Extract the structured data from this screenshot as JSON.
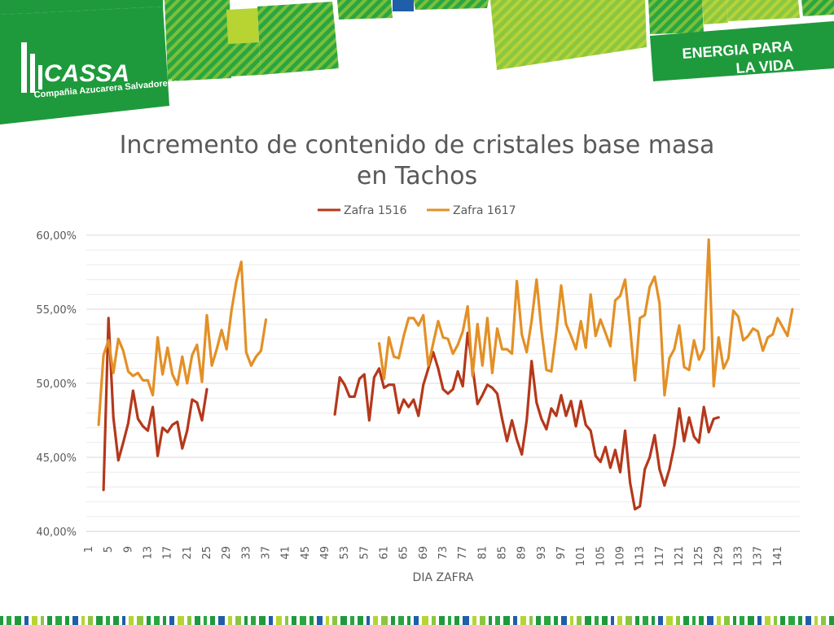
{
  "branding": {
    "logo_name": "CASSA",
    "logo_subtitle": "Compañia Azucarera Salvadoreña",
    "slogan_line1": "ENERGIA PARA",
    "slogan_line2": "LA VIDA"
  },
  "colors": {
    "brand_green": "#1e9a3c",
    "lime": "#8cc63f",
    "yellow_green": "#b7d433",
    "series_1516": "#b5381b",
    "series_1617": "#e39026"
  },
  "chart_data": {
    "type": "line",
    "title_lines": [
      "Incremento de contenido de cristales base masa",
      "en Tachos"
    ],
    "xlabel": "DIA ZAFRA",
    "ylabel": "",
    "x_range": [
      1,
      145
    ],
    "x_tick_labels": [
      "1",
      "5",
      "9",
      "13",
      "17",
      "21",
      "25",
      "29",
      "33",
      "37",
      "41",
      "45",
      "49",
      "53",
      "57",
      "61",
      "65",
      "69",
      "73",
      "77",
      "81",
      "85",
      "89",
      "93",
      "97",
      "101",
      "105",
      "109",
      "113",
      "117",
      "121",
      "125",
      "129",
      "133",
      "137",
      "141"
    ],
    "ylim": [
      40,
      60
    ],
    "y_tick_labels": [
      "40,00%",
      "45,00%",
      "50,00%",
      "55,00%",
      "60,00%"
    ],
    "y_ticks": [
      40,
      45,
      50,
      55,
      60
    ],
    "grid": true,
    "legend_position": "top-center",
    "series": [
      {
        "name": "Zafra 1516",
        "color": "#b5381b",
        "points": [
          [
            4,
            42.8
          ],
          [
            5,
            54.4
          ],
          [
            6,
            47.7
          ],
          [
            7,
            44.8
          ],
          [
            8,
            46.0
          ],
          [
            9,
            47.3
          ],
          [
            10,
            49.5
          ],
          [
            11,
            47.6
          ],
          [
            12,
            47.1
          ],
          [
            13,
            46.8
          ],
          [
            14,
            48.4
          ],
          [
            15,
            45.1
          ],
          [
            16,
            47.0
          ],
          [
            17,
            46.7
          ],
          [
            18,
            47.2
          ],
          [
            19,
            47.4
          ],
          [
            20,
            45.6
          ],
          [
            21,
            46.8
          ],
          [
            22,
            48.9
          ],
          [
            23,
            48.7
          ],
          [
            24,
            47.5
          ],
          [
            25,
            49.6
          ],
          [
            51,
            47.9
          ],
          [
            52,
            50.4
          ],
          [
            53,
            49.9
          ],
          [
            54,
            49.1
          ],
          [
            55,
            49.1
          ],
          [
            56,
            50.3
          ],
          [
            57,
            50.6
          ],
          [
            58,
            47.5
          ],
          [
            59,
            50.4
          ],
          [
            60,
            51.0
          ],
          [
            61,
            49.7
          ],
          [
            62,
            49.9
          ],
          [
            63,
            49.9
          ],
          [
            64,
            48.0
          ],
          [
            65,
            48.9
          ],
          [
            66,
            48.4
          ],
          [
            67,
            48.9
          ],
          [
            68,
            47.8
          ],
          [
            69,
            49.9
          ],
          [
            70,
            51.0
          ],
          [
            71,
            52.1
          ],
          [
            72,
            51.0
          ],
          [
            73,
            49.6
          ],
          [
            74,
            49.3
          ],
          [
            75,
            49.6
          ],
          [
            76,
            50.8
          ],
          [
            77,
            49.8
          ],
          [
            78,
            53.4
          ],
          [
            79,
            51.1
          ],
          [
            80,
            48.6
          ],
          [
            81,
            49.2
          ],
          [
            82,
            49.9
          ],
          [
            83,
            49.7
          ],
          [
            84,
            49.3
          ],
          [
            85,
            47.6
          ],
          [
            86,
            46.1
          ],
          [
            87,
            47.5
          ],
          [
            88,
            46.2
          ],
          [
            89,
            45.2
          ],
          [
            90,
            47.5
          ],
          [
            91,
            51.5
          ],
          [
            92,
            48.7
          ],
          [
            93,
            47.6
          ],
          [
            94,
            46.9
          ],
          [
            95,
            48.3
          ],
          [
            96,
            47.8
          ],
          [
            97,
            49.2
          ],
          [
            98,
            47.8
          ],
          [
            99,
            48.8
          ],
          [
            100,
            47.1
          ],
          [
            101,
            48.8
          ],
          [
            102,
            47.2
          ],
          [
            103,
            46.8
          ],
          [
            104,
            45.1
          ],
          [
            105,
            44.7
          ],
          [
            106,
            45.7
          ],
          [
            107,
            44.3
          ],
          [
            108,
            45.5
          ],
          [
            109,
            44.0
          ],
          [
            110,
            46.8
          ],
          [
            111,
            43.3
          ],
          [
            112,
            41.5
          ],
          [
            113,
            41.7
          ],
          [
            114,
            44.2
          ],
          [
            115,
            45.0
          ],
          [
            116,
            46.5
          ],
          [
            117,
            44.2
          ],
          [
            118,
            43.1
          ],
          [
            119,
            44.2
          ],
          [
            120,
            45.8
          ],
          [
            121,
            48.3
          ],
          [
            122,
            46.1
          ],
          [
            123,
            47.7
          ],
          [
            124,
            46.4
          ],
          [
            125,
            46.0
          ],
          [
            126,
            48.4
          ],
          [
            127,
            46.7
          ],
          [
            128,
            47.6
          ],
          [
            129,
            47.7
          ]
        ]
      },
      {
        "name": "Zafra 1617",
        "color": "#e39026",
        "points": [
          [
            3,
            47.2
          ],
          [
            4,
            51.9
          ],
          [
            5,
            52.9
          ],
          [
            6,
            50.7
          ],
          [
            7,
            53.0
          ],
          [
            8,
            52.2
          ],
          [
            9,
            50.8
          ],
          [
            10,
            50.5
          ],
          [
            11,
            50.7
          ],
          [
            12,
            50.2
          ],
          [
            13,
            50.2
          ],
          [
            14,
            49.2
          ],
          [
            15,
            53.1
          ],
          [
            16,
            50.6
          ],
          [
            17,
            52.4
          ],
          [
            18,
            50.6
          ],
          [
            19,
            49.9
          ],
          [
            20,
            51.8
          ],
          [
            21,
            50.0
          ],
          [
            22,
            51.9
          ],
          [
            23,
            52.6
          ],
          [
            24,
            50.1
          ],
          [
            25,
            54.6
          ],
          [
            26,
            51.2
          ],
          [
            27,
            52.3
          ],
          [
            28,
            53.6
          ],
          [
            29,
            52.3
          ],
          [
            30,
            54.9
          ],
          [
            31,
            56.9
          ],
          [
            32,
            58.2
          ],
          [
            33,
            52.1
          ],
          [
            34,
            51.2
          ],
          [
            35,
            51.8
          ],
          [
            36,
            52.2
          ],
          [
            37,
            54.3
          ],
          [
            60,
            52.7
          ],
          [
            61,
            50.3
          ],
          [
            62,
            53.1
          ],
          [
            63,
            51.8
          ],
          [
            64,
            51.7
          ],
          [
            65,
            53.2
          ],
          [
            66,
            54.4
          ],
          [
            67,
            54.4
          ],
          [
            68,
            53.9
          ],
          [
            69,
            54.6
          ],
          [
            70,
            51.2
          ],
          [
            71,
            52.7
          ],
          [
            72,
            54.2
          ],
          [
            73,
            53.1
          ],
          [
            74,
            53.0
          ],
          [
            75,
            52.0
          ],
          [
            76,
            52.6
          ],
          [
            77,
            53.5
          ],
          [
            78,
            55.2
          ],
          [
            79,
            50.5
          ],
          [
            80,
            54.0
          ],
          [
            81,
            51.2
          ],
          [
            82,
            54.4
          ],
          [
            83,
            50.7
          ],
          [
            84,
            53.7
          ],
          [
            85,
            52.3
          ],
          [
            86,
            52.3
          ],
          [
            87,
            52.0
          ],
          [
            88,
            56.9
          ],
          [
            89,
            53.3
          ],
          [
            90,
            52.1
          ],
          [
            91,
            54.2
          ],
          [
            92,
            57.0
          ],
          [
            93,
            53.6
          ],
          [
            94,
            50.9
          ],
          [
            95,
            50.8
          ],
          [
            96,
            53.4
          ],
          [
            97,
            56.6
          ],
          [
            98,
            54.0
          ],
          [
            99,
            53.2
          ],
          [
            100,
            52.3
          ],
          [
            101,
            54.2
          ],
          [
            102,
            52.4
          ],
          [
            103,
            56.0
          ],
          [
            104,
            53.2
          ],
          [
            105,
            54.3
          ],
          [
            106,
            53.4
          ],
          [
            107,
            52.5
          ],
          [
            108,
            55.6
          ],
          [
            109,
            55.9
          ],
          [
            110,
            57.0
          ],
          [
            111,
            53.8
          ],
          [
            112,
            50.2
          ],
          [
            113,
            54.4
          ],
          [
            114,
            54.6
          ],
          [
            115,
            56.5
          ],
          [
            116,
            57.2
          ],
          [
            117,
            55.4
          ],
          [
            118,
            49.2
          ],
          [
            119,
            51.7
          ],
          [
            120,
            52.3
          ],
          [
            121,
            53.9
          ],
          [
            122,
            51.1
          ],
          [
            123,
            50.9
          ],
          [
            124,
            52.9
          ],
          [
            125,
            51.6
          ],
          [
            126,
            52.3
          ],
          [
            127,
            59.7
          ],
          [
            128,
            49.8
          ],
          [
            129,
            53.1
          ],
          [
            130,
            51.0
          ],
          [
            131,
            51.7
          ],
          [
            132,
            54.9
          ],
          [
            133,
            54.5
          ],
          [
            134,
            52.9
          ],
          [
            135,
            53.2
          ],
          [
            136,
            53.7
          ],
          [
            137,
            53.5
          ],
          [
            138,
            52.2
          ],
          [
            139,
            53.1
          ],
          [
            140,
            53.3
          ],
          [
            141,
            54.4
          ],
          [
            142,
            53.8
          ],
          [
            143,
            53.2
          ],
          [
            144,
            55.0
          ]
        ]
      }
    ]
  }
}
